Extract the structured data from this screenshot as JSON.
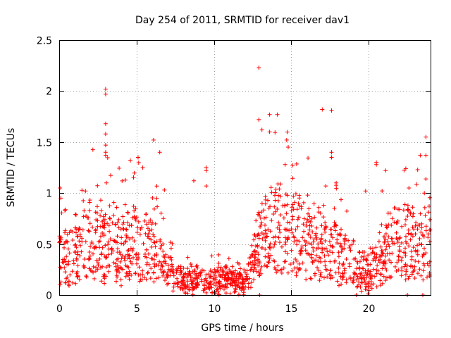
{
  "chart_data": {
    "type": "scatter",
    "title": "Day 254 of 2011, SRMTID for receiver dav1",
    "xlabel": "GPS time / hours",
    "ylabel": "SRMTID / TECUs",
    "xlim": [
      0,
      24
    ],
    "ylim": [
      0,
      2.5
    ],
    "x_ticks": [
      0,
      5,
      10,
      15,
      20
    ],
    "x_tick_labels": [
      "0",
      "5",
      "10",
      "15",
      "20"
    ],
    "y_ticks": [
      0,
      0.5,
      1,
      1.5,
      2,
      2.5
    ],
    "y_tick_labels": [
      "0",
      "0.5",
      "1",
      "1.5",
      "2",
      "2.5"
    ],
    "grid": true,
    "marker": "+",
    "color": "#ff0000",
    "generator": {
      "count": 1500,
      "seed": 254,
      "baseline_profile": {
        "hours": [
          0,
          1,
          2,
          3,
          4,
          5,
          6,
          7,
          8,
          9,
          10,
          11,
          12,
          13,
          14,
          15,
          16,
          17,
          18,
          19,
          20,
          21,
          22,
          23,
          24
        ],
        "levels": [
          0.35,
          0.4,
          0.55,
          0.5,
          0.45,
          0.5,
          0.45,
          0.25,
          0.15,
          0.15,
          0.15,
          0.15,
          0.1,
          0.55,
          0.65,
          0.6,
          0.5,
          0.45,
          0.4,
          0.3,
          0.2,
          0.45,
          0.5,
          0.5,
          0.55
        ]
      }
    },
    "highlighted_points": [
      {
        "x": 0.05,
        "y": 1.05
      },
      {
        "x": 0.1,
        "y": 0.95
      },
      {
        "x": 1.7,
        "y": 1.02
      },
      {
        "x": 3.0,
        "y": 2.02
      },
      {
        "x": 3.0,
        "y": 1.97
      },
      {
        "x": 3.0,
        "y": 1.68
      },
      {
        "x": 3.0,
        "y": 1.58
      },
      {
        "x": 3.0,
        "y": 1.47
      },
      {
        "x": 3.0,
        "y": 1.4
      },
      {
        "x": 3.0,
        "y": 1.37
      },
      {
        "x": 3.05,
        "y": 1.1
      },
      {
        "x": 4.6,
        "y": 1.32
      },
      {
        "x": 5.1,
        "y": 1.35
      },
      {
        "x": 5.4,
        "y": 1.25
      },
      {
        "x": 6.1,
        "y": 1.52
      },
      {
        "x": 6.5,
        "y": 1.4
      },
      {
        "x": 6.8,
        "y": 1.03
      },
      {
        "x": 8.7,
        "y": 1.12
      },
      {
        "x": 9.5,
        "y": 1.25
      },
      {
        "x": 9.5,
        "y": 1.22
      },
      {
        "x": 9.5,
        "y": 1.07
      },
      {
        "x": 12.9,
        "y": 2.23
      },
      {
        "x": 12.9,
        "y": 1.72
      },
      {
        "x": 13.1,
        "y": 1.62
      },
      {
        "x": 13.6,
        "y": 1.77
      },
      {
        "x": 13.6,
        "y": 1.6
      },
      {
        "x": 14.1,
        "y": 1.77
      },
      {
        "x": 14.7,
        "y": 1.52
      },
      {
        "x": 14.8,
        "y": 1.45
      },
      {
        "x": 14.6,
        "y": 1.28
      },
      {
        "x": 17.0,
        "y": 1.82
      },
      {
        "x": 17.6,
        "y": 1.81
      },
      {
        "x": 17.6,
        "y": 1.4
      },
      {
        "x": 17.6,
        "y": 1.35
      },
      {
        "x": 17.9,
        "y": 1.1
      },
      {
        "x": 19.8,
        "y": 1.02
      },
      {
        "x": 20.5,
        "y": 1.3
      },
      {
        "x": 20.5,
        "y": 1.28
      },
      {
        "x": 21.1,
        "y": 1.22
      },
      {
        "x": 22.4,
        "y": 1.24
      },
      {
        "x": 22.6,
        "y": 1.05
      },
      {
        "x": 23.7,
        "y": 1.55
      },
      {
        "x": 23.7,
        "y": 1.37
      },
      {
        "x": 23.6,
        "y": 1.0
      },
      {
        "x": 12.95,
        "y": 0.0
      },
      {
        "x": 19.2,
        "y": 0.0
      },
      {
        "x": 22.5,
        "y": 0.0
      },
      {
        "x": 23.5,
        "y": 0.0
      }
    ]
  }
}
